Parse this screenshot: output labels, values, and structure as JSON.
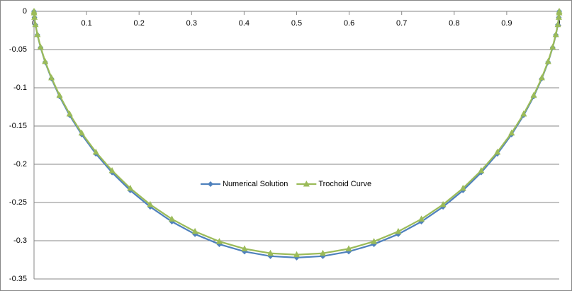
{
  "chart_data": {
    "type": "scatter",
    "x": [
      0,
      0.0001,
      0.0008,
      0.0027,
      0.0065,
      0.0125,
      0.0212,
      0.0332,
      0.0486,
      0.0678,
      0.0908,
      0.1178,
      0.1486,
      0.1832,
      0.2212,
      0.2625,
      0.3065,
      0.3528,
      0.4008,
      0.4501,
      0.5,
      0.5499,
      0.5992,
      0.6472,
      0.6935,
      0.7375,
      0.7788,
      0.8168,
      0.8514,
      0.8822,
      0.9092,
      0.9322,
      0.9514,
      0.9668,
      0.9788,
      0.9875,
      0.9935,
      0.9973,
      0.9992,
      0.9999,
      1
    ],
    "series": [
      {
        "name": "Numerical Solution",
        "color": "#4f81bd",
        "marker": "diamond",
        "values": [
          0,
          -0.002,
          -0.0079,
          -0.0176,
          -0.0308,
          -0.0472,
          -0.0664,
          -0.0879,
          -0.1113,
          -0.1359,
          -0.1611,
          -0.1863,
          -0.2108,
          -0.2342,
          -0.2557,
          -0.275,
          -0.2914,
          -0.3046,
          -0.3142,
          -0.3202,
          -0.3221,
          -0.3202,
          -0.3142,
          -0.3046,
          -0.2914,
          -0.275,
          -0.2557,
          -0.2342,
          -0.2108,
          -0.1863,
          -0.1611,
          -0.1359,
          -0.1113,
          -0.0879,
          -0.0664,
          -0.0472,
          -0.0308,
          -0.0176,
          -0.0079,
          -0.002,
          0
        ]
      },
      {
        "name": "Trochoid Curve",
        "color": "#9bbb59",
        "marker": "triangle",
        "values": [
          0,
          -0.002,
          -0.0078,
          -0.0174,
          -0.0304,
          -0.0466,
          -0.0656,
          -0.0869,
          -0.11,
          -0.1343,
          -0.1592,
          -0.1841,
          -0.2083,
          -0.2314,
          -0.2527,
          -0.2717,
          -0.2879,
          -0.301,
          -0.3105,
          -0.3164,
          -0.3183,
          -0.3164,
          -0.3105,
          -0.301,
          -0.2879,
          -0.2717,
          -0.2527,
          -0.2314,
          -0.2083,
          -0.1841,
          -0.1592,
          -0.1343,
          -0.11,
          -0.0869,
          -0.0656,
          -0.0466,
          -0.0304,
          -0.0174,
          -0.0078,
          -0.002,
          0
        ]
      }
    ],
    "xlim": [
      0,
      1
    ],
    "xticks": [
      0,
      0.1,
      0.2,
      0.3,
      0.4,
      0.5,
      0.6,
      0.7,
      0.8,
      0.9,
      1
    ],
    "ylim": [
      -0.35,
      0
    ],
    "yticks": [
      0,
      -0.05,
      -0.1,
      -0.15,
      -0.2,
      -0.25,
      -0.3,
      -0.35
    ],
    "grid": true,
    "legend": "center"
  }
}
